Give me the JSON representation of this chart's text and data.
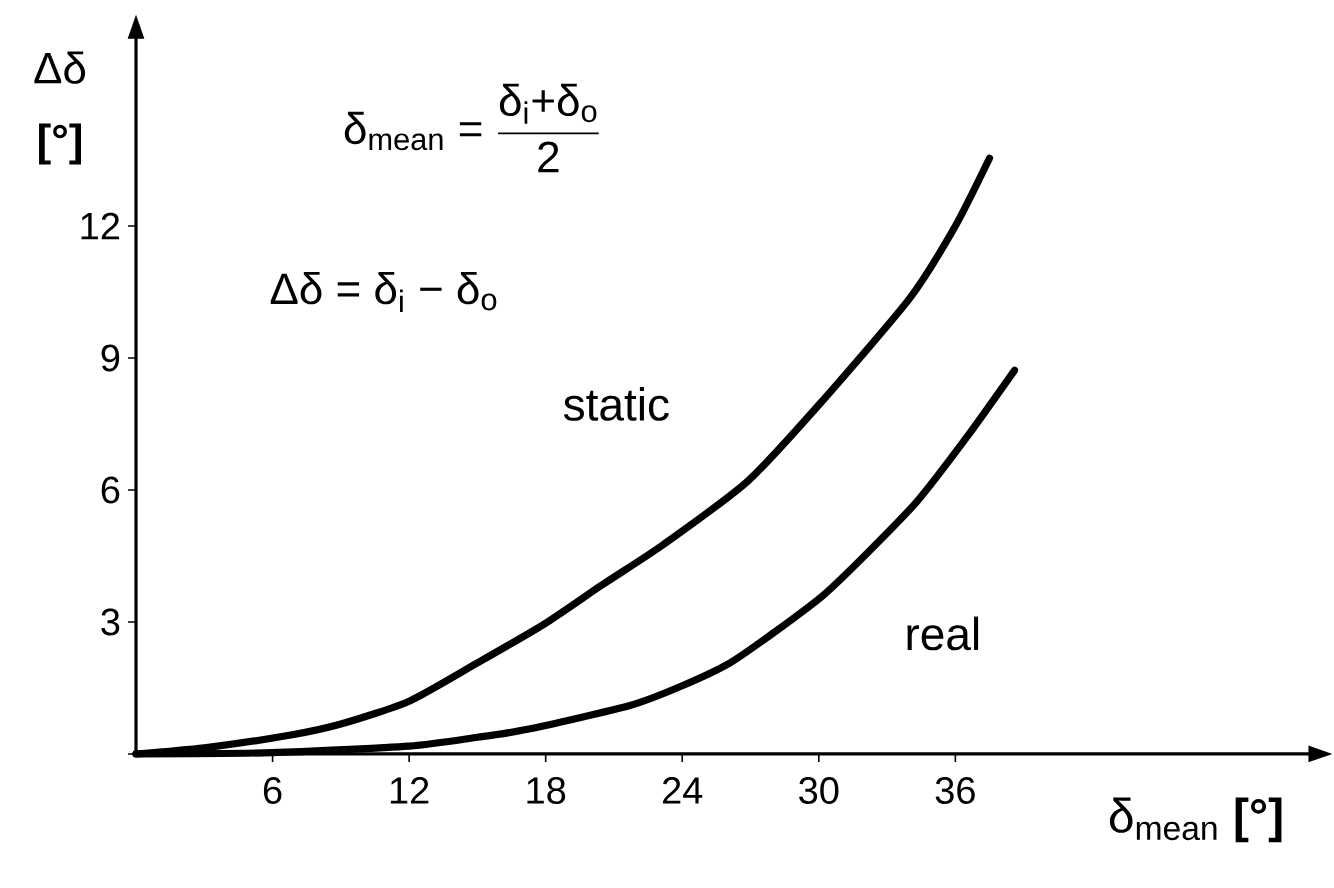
{
  "chart_data": {
    "type": "line",
    "xlabel": "δ$_{mean}$ **[°]**",
    "ylabel": "Δδ **[°]**",
    "annotations": [
      "\\text{δ}_{\\text{mean}}\\text{ = }\\frac{\\text{δ}_{\\text{i}}\\text{+δ}_{\\text{o}}}{\\text{2}}",
      "\\text{Δδ = δ}_{\\text{i}}\\text{ − δ}_{\\text{o}}"
    ],
    "series": [
      {
        "name": "static",
        "color": "#000000",
        "x": [
          0,
          3,
          6.8,
          9,
          12,
          15,
          17.9,
          20.5,
          23.2,
          26.9,
          30.2,
          34,
          36,
          37.5
        ],
        "values": [
          0,
          0.14,
          0.43,
          0.68,
          1.2,
          2.07,
          2.94,
          3.85,
          4.77,
          6.21,
          8.05,
          10.36,
          12.0,
          13.54
        ]
      },
      {
        "name": "real",
        "color": "#000000",
        "x": [
          0,
          6,
          12,
          15,
          17.2,
          21.7,
          24,
          26.1,
          28,
          30.2,
          32,
          34.3,
          36.5,
          38.6
        ],
        "values": [
          0,
          0.03,
          0.18,
          0.38,
          0.56,
          1.1,
          1.55,
          2.07,
          2.75,
          3.61,
          4.5,
          5.73,
          7.2,
          8.72
        ]
      }
    ],
    "xlim": [
      0,
      51.6
    ],
    "ylim": [
      0,
      16.3
    ],
    "xticks": [
      6,
      12,
      18,
      24,
      30,
      36
    ],
    "yticks": [
      {
        "value": 0,
        "label": null
      },
      3,
      6,
      9,
      12
    ],
    "marker": "none",
    "line_style": "solid"
  }
}
